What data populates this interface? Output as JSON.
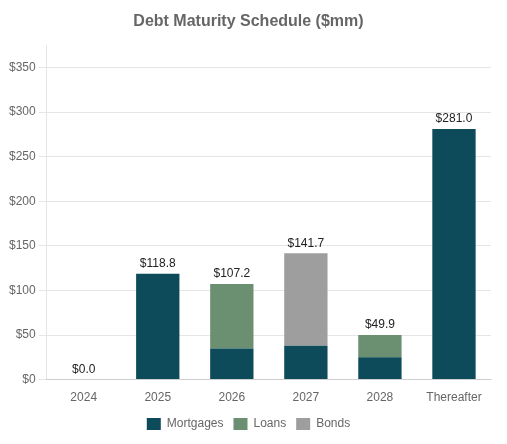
{
  "chart_data": {
    "type": "bar",
    "stacked": true,
    "title": "Debt Maturity Schedule ($mm)",
    "categories": [
      "2024",
      "2025",
      "2026",
      "2027",
      "2028",
      "Thereafter"
    ],
    "series": [
      {
        "name": "Mortgages",
        "color": "#0d4a5a",
        "values": [
          0.0,
          118.8,
          35.0,
          38.0,
          25.0,
          281.0
        ]
      },
      {
        "name": "Loans",
        "color": "#6b8f71",
        "values": [
          0.0,
          0.0,
          72.2,
          0.0,
          24.9,
          0.0
        ]
      },
      {
        "name": "Bonds",
        "color": "#9e9e9e",
        "values": [
          0.0,
          0.0,
          0.0,
          103.7,
          0.0,
          0.0
        ]
      }
    ],
    "annotations": [
      {
        "x": "2024",
        "y": 0.0,
        "text": "$0.0"
      },
      {
        "x": "2025",
        "y": 118.8,
        "text": "$118.8"
      },
      {
        "x": "2026",
        "y": 107.2,
        "text": "$107.2"
      },
      {
        "x": "2027",
        "y": 141.7,
        "text": "$141.7"
      },
      {
        "x": "2028",
        "y": 49.9,
        "text": "$49.9"
      },
      {
        "x": "Thereafter",
        "y": 281.0,
        "text": "$281.0"
      }
    ],
    "ylim": [
      0,
      375
    ],
    "yticks": [
      {
        "value": 0,
        "label": "$0"
      },
      {
        "value": 50,
        "label": "$50"
      },
      {
        "value": 100,
        "label": "$100"
      },
      {
        "value": 150,
        "label": "$150"
      },
      {
        "value": 200,
        "label": "$200"
      },
      {
        "value": 250,
        "label": "$250"
      },
      {
        "value": 300,
        "label": "$300"
      },
      {
        "value": 350,
        "label": "$350"
      }
    ],
    "grid": true,
    "legend": "bottom"
  }
}
